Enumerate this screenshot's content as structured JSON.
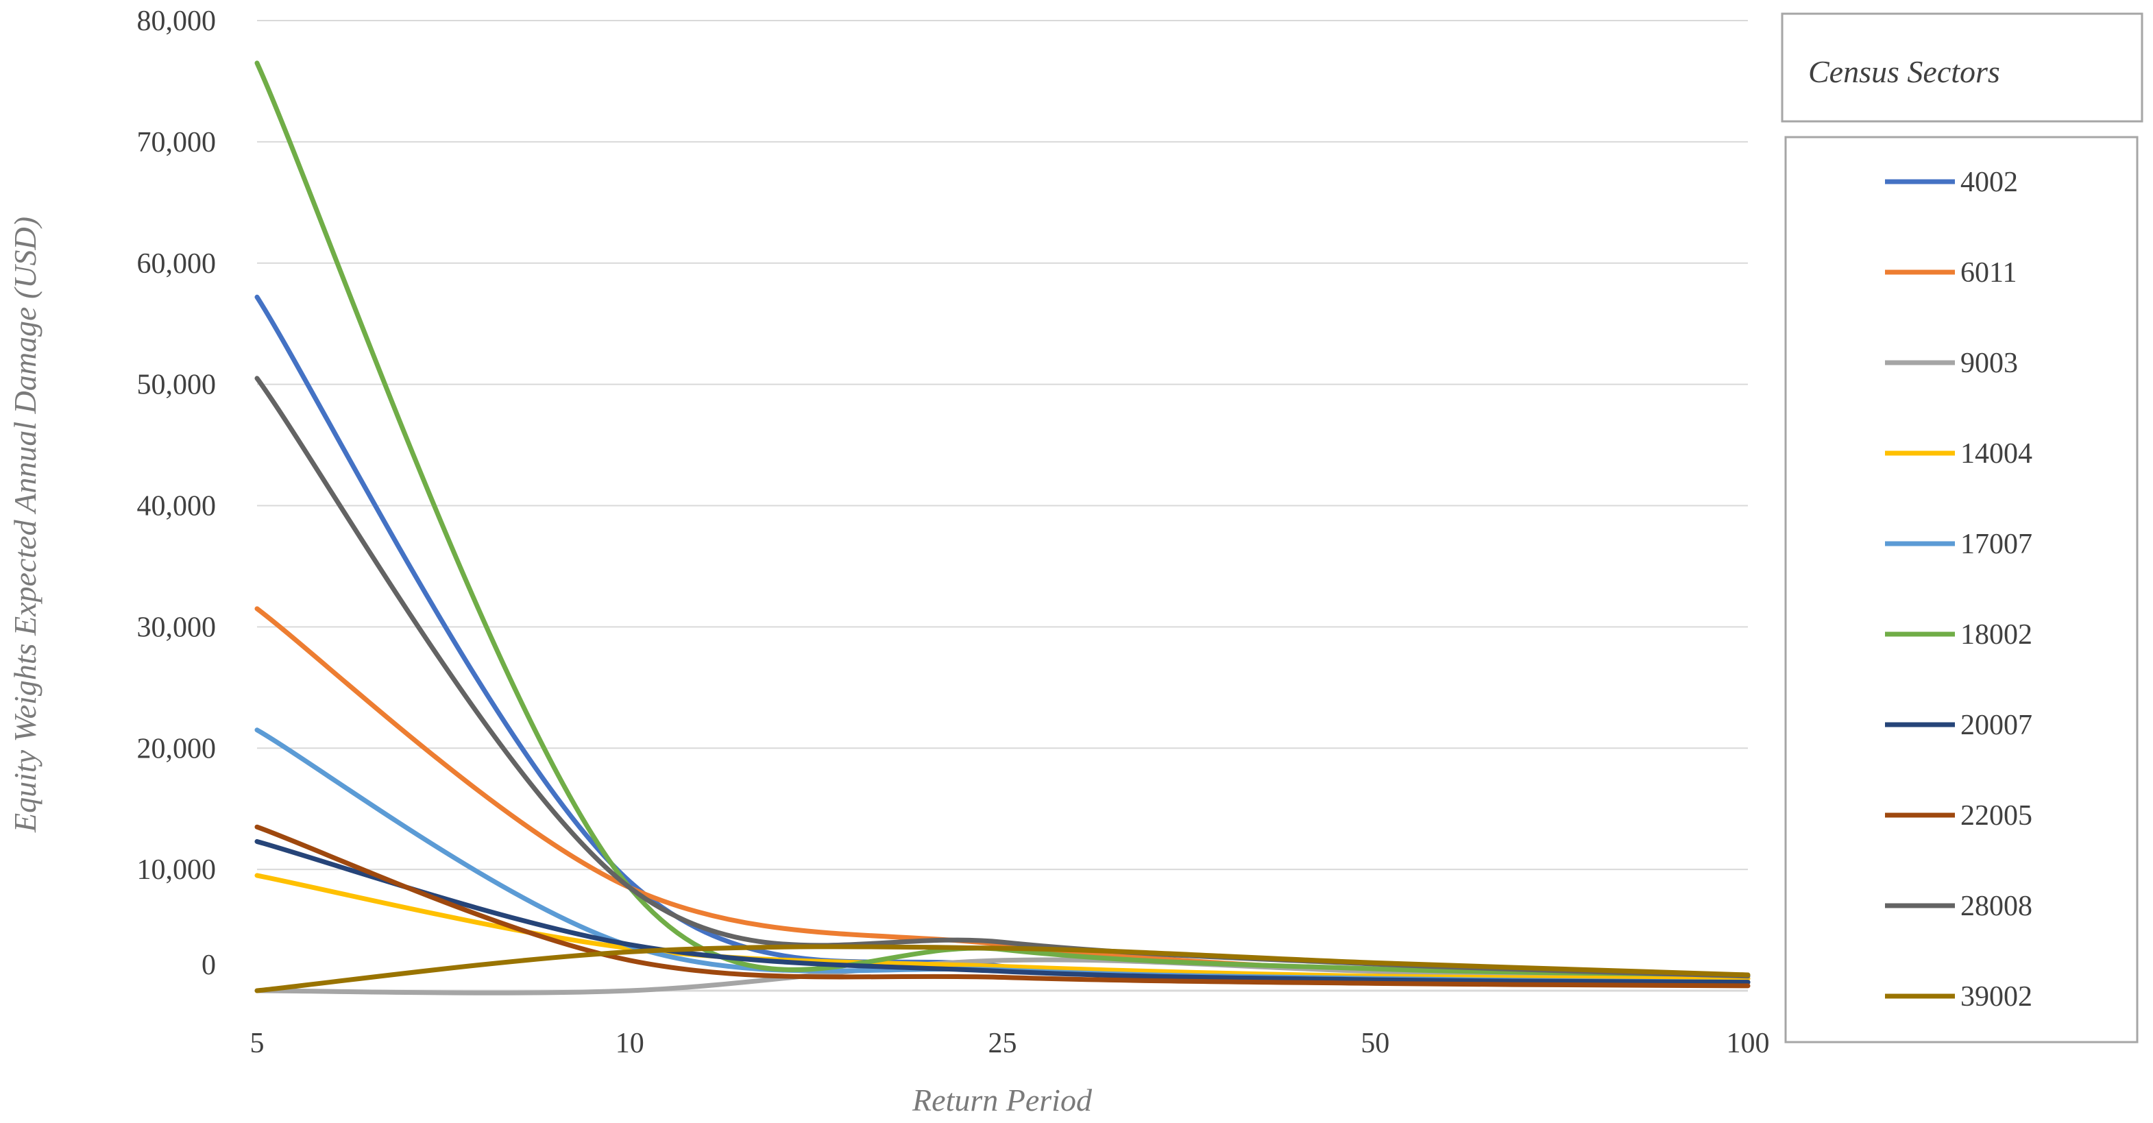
{
  "chart_data": {
    "type": "line",
    "categories": [
      "5",
      "10",
      "25",
      "50",
      "100"
    ],
    "xlabel": "Return Period",
    "ylabel": "Equity Weights Expected Annual Damage (USD)",
    "ylim": [
      0,
      80000
    ],
    "yticks": [
      "80,000",
      "70,000",
      "60,000",
      "50,000",
      "40,000",
      "30,000",
      "20,000",
      "10,000",
      "0"
    ],
    "grid": true,
    "legend_position": "right",
    "legend_title": "Census Sectors",
    "series": [
      {
        "name": "4002",
        "color": "#4472C4",
        "values": [
          57200,
          9000,
          2000,
          1000,
          700
        ]
      },
      {
        "name": "6011",
        "color": "#ED7D31",
        "values": [
          31500,
          8500,
          3800,
          1600,
          700
        ]
      },
      {
        "name": "9003",
        "color": "#A5A5A5",
        "values": [
          0,
          0,
          2500,
          1600,
          1000
        ]
      },
      {
        "name": "14004",
        "color": "#FFC000",
        "values": [
          9500,
          3500,
          2000,
          1200,
          1000
        ]
      },
      {
        "name": "17007",
        "color": "#5B9BD5",
        "values": [
          21500,
          3700,
          1700,
          1000,
          700
        ]
      },
      {
        "name": "18002",
        "color": "#70AD47",
        "values": [
          76500,
          8500,
          3400,
          1800,
          1300
        ]
      },
      {
        "name": "20007",
        "color": "#264478",
        "values": [
          12300,
          3800,
          1600,
          900,
          700
        ]
      },
      {
        "name": "22005",
        "color": "#9E480E",
        "values": [
          13500,
          2500,
          1100,
          600,
          400
        ]
      },
      {
        "name": "28008",
        "color": "#636363",
        "values": [
          50500,
          8500,
          4000,
          2200,
          1200
        ]
      },
      {
        "name": "39002",
        "color": "#997300",
        "values": [
          0,
          3200,
          3500,
          2300,
          1300
        ]
      }
    ]
  }
}
